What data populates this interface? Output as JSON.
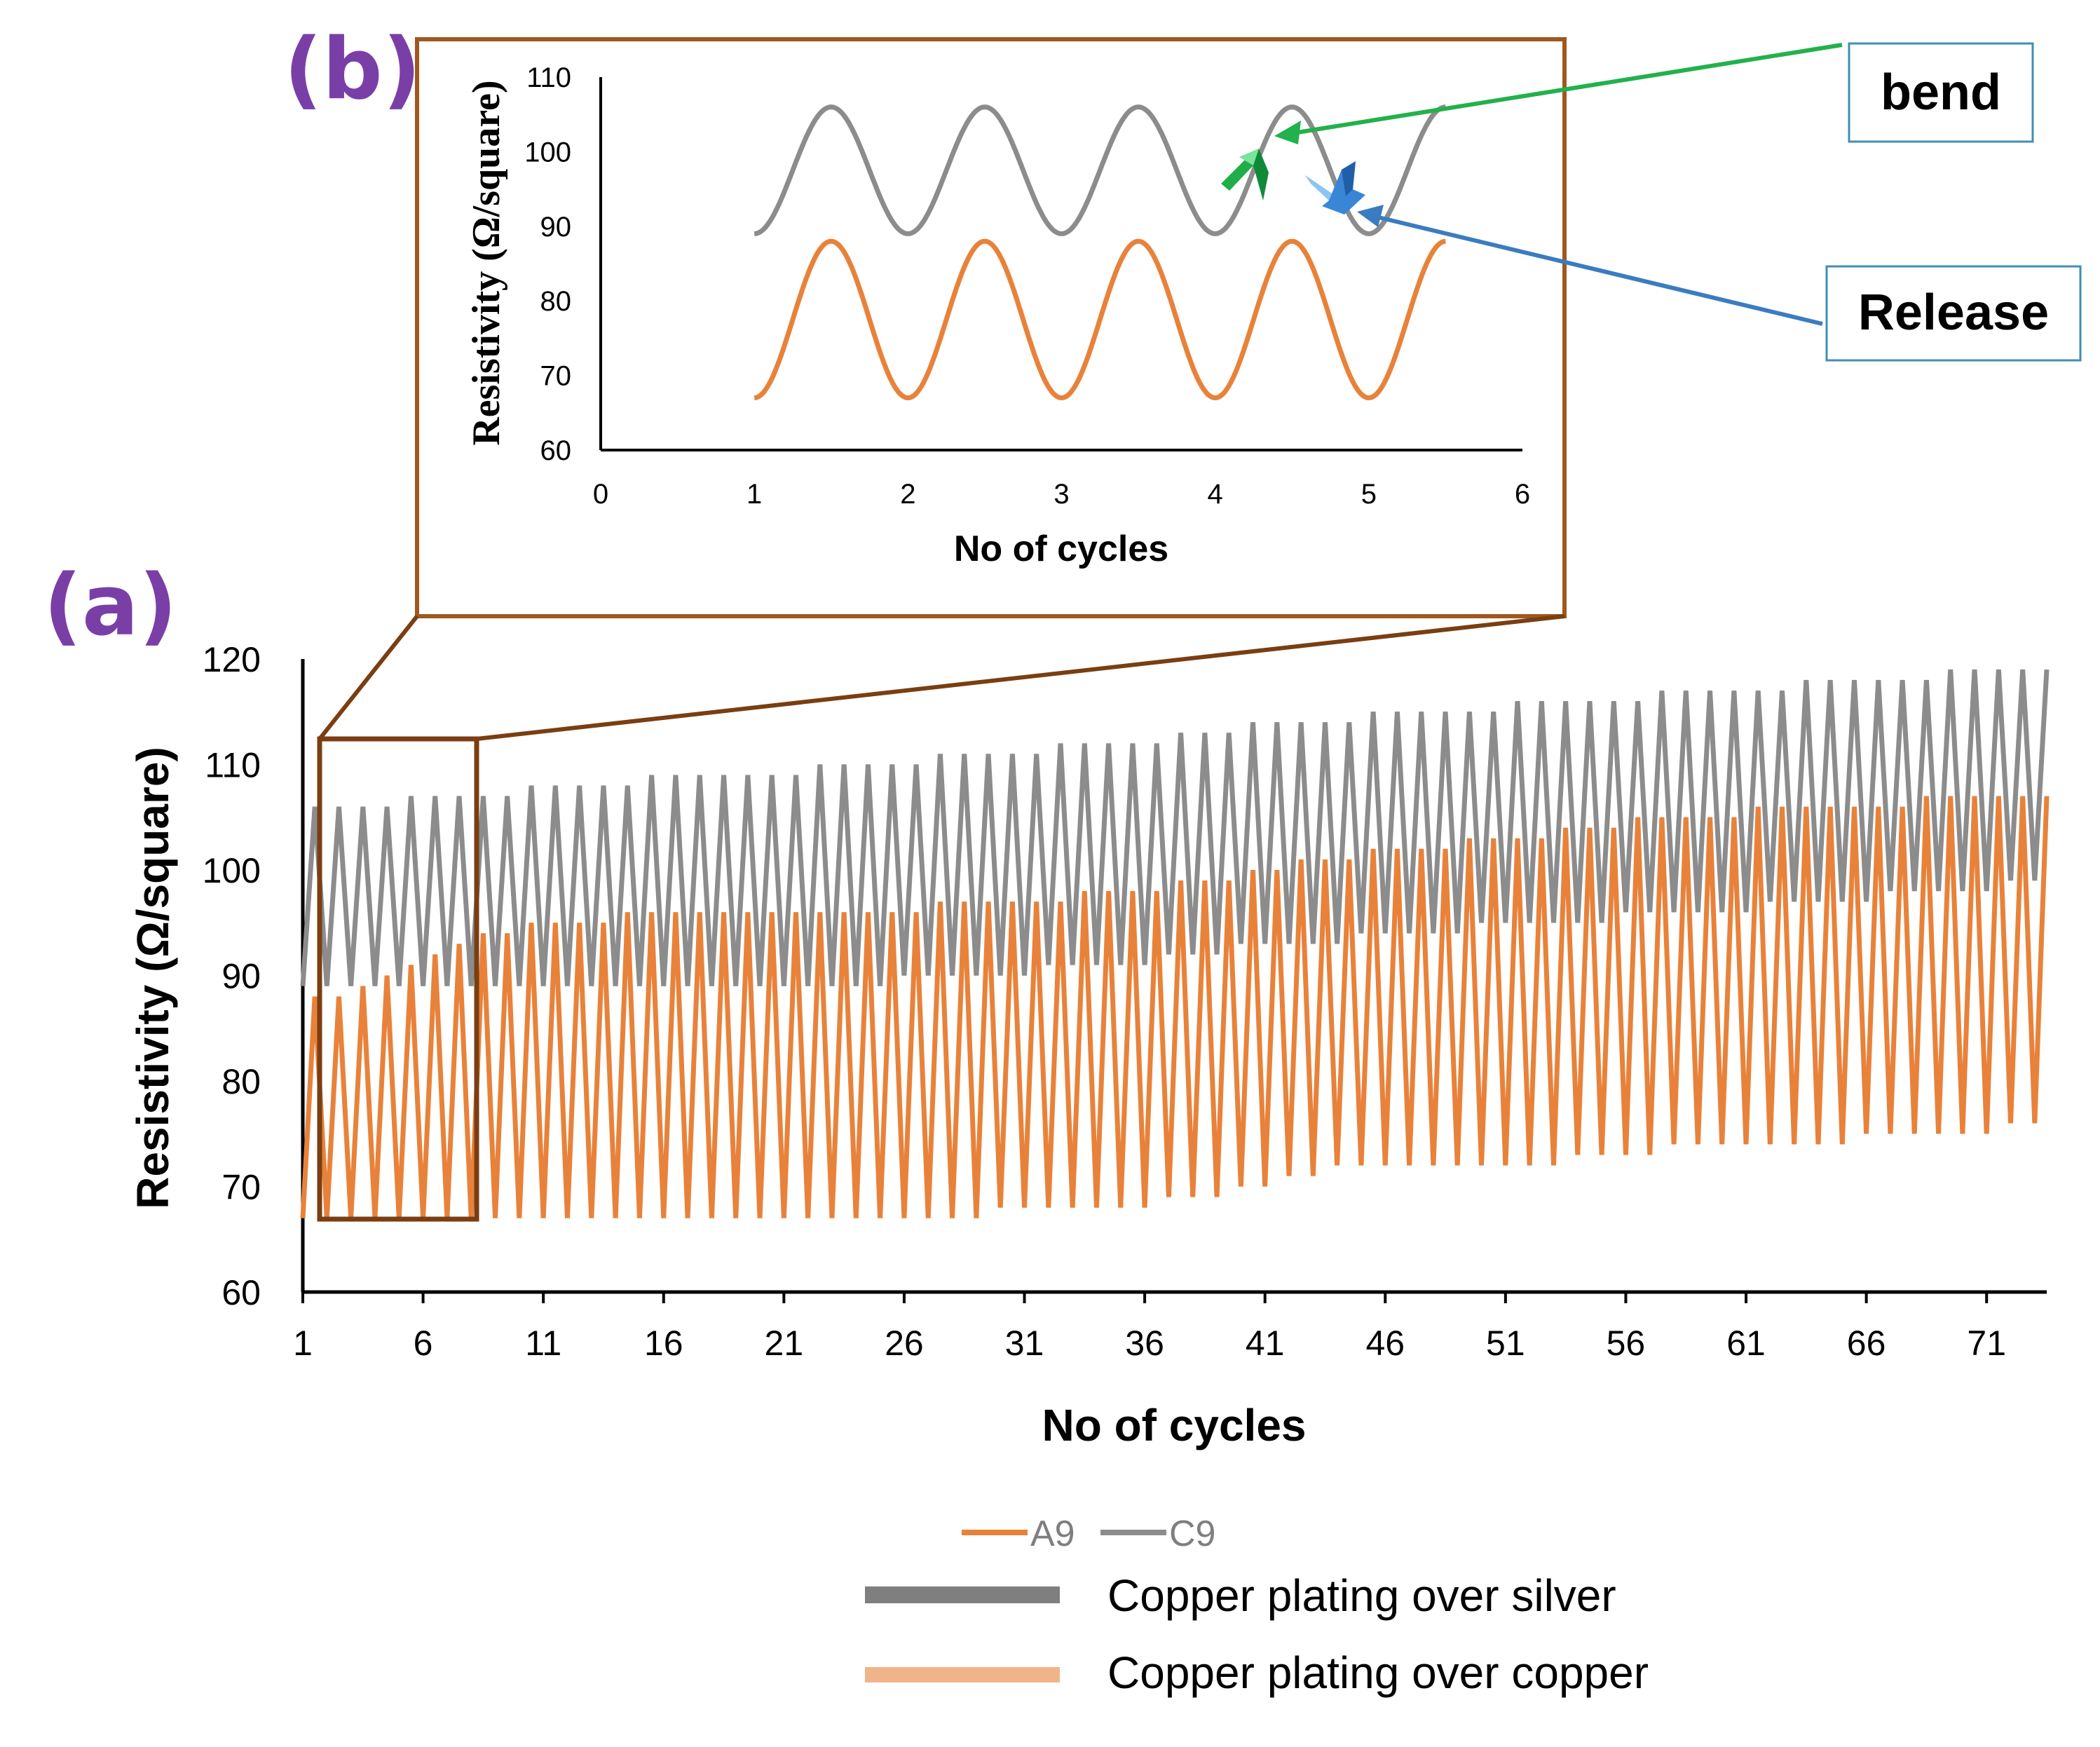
{
  "panel_labels": {
    "a": "(a)",
    "b": "(b)"
  },
  "annotations": {
    "bend": "bend",
    "release": "Release"
  },
  "legend": {
    "series_labels": [
      "A9",
      "C9"
    ],
    "descriptions": [
      {
        "text": "Copper plating over silver",
        "color": "#7f7f7f"
      },
      {
        "text": "Copper plating over copper",
        "color": "#f0b48a"
      }
    ]
  },
  "colors": {
    "A9": "#e8823a",
    "C9": "#8c8c8c",
    "zoom_box": "#7a3e12",
    "bend_arrow": "#22b14c",
    "release_arrow": "#3a7cc0",
    "panel_label": "#7a3fa6"
  },
  "chart_data": [
    {
      "id": "main",
      "type": "line",
      "title": "",
      "xlabel": "No of cycles",
      "ylabel": "Resistivity (Ω/square)",
      "ylim": [
        60,
        120
      ],
      "yticks": [
        60,
        70,
        80,
        90,
        100,
        110,
        120
      ],
      "xlim": [
        1,
        73.5
      ],
      "xticks": [
        1,
        6,
        11,
        16,
        21,
        26,
        31,
        36,
        41,
        46,
        51,
        56,
        61,
        66,
        71
      ],
      "cycle_step": 0.5,
      "series": [
        {
          "name": "A9",
          "color": "#e8823a",
          "x_start": 1,
          "peaks": [
            88,
            88,
            89,
            90,
            91,
            92,
            93,
            94,
            94,
            95,
            95,
            95,
            95,
            96,
            96,
            96,
            96,
            96,
            96,
            96,
            96,
            96,
            96,
            96,
            96,
            96,
            97,
            97,
            97,
            97,
            97,
            97,
            98,
            98,
            98,
            98,
            99,
            99,
            99,
            100,
            100,
            101,
            101,
            101,
            102,
            102,
            102,
            102,
            103,
            103,
            103,
            103,
            104,
            104,
            104,
            105,
            105,
            105,
            105,
            105,
            106,
            106,
            106,
            106,
            106,
            106,
            106,
            107,
            107,
            107,
            107,
            107,
            107
          ],
          "troughs": [
            67,
            67,
            67,
            67,
            67,
            67,
            67,
            67,
            67,
            67,
            67,
            67,
            67,
            67,
            67,
            67,
            67,
            67,
            67,
            67,
            67,
            67,
            67,
            67,
            67,
            67,
            67,
            67,
            67,
            68,
            68,
            68,
            68,
            68,
            68,
            68,
            69,
            69,
            69,
            70,
            70,
            71,
            71,
            72,
            72,
            72,
            72,
            72,
            72,
            72,
            72,
            72,
            72,
            73,
            73,
            73,
            73,
            74,
            74,
            74,
            74,
            74,
            74,
            74,
            74,
            75,
            75,
            75,
            75,
            75,
            75,
            76,
            76
          ]
        },
        {
          "name": "C9",
          "color": "#8c8c8c",
          "x_start": 1,
          "peaks": [
            106,
            106,
            106,
            106,
            107,
            107,
            107,
            107,
            107,
            108,
            108,
            108,
            108,
            108,
            109,
            109,
            109,
            109,
            109,
            109,
            109,
            110,
            110,
            110,
            110,
            110,
            111,
            111,
            111,
            111,
            111,
            112,
            112,
            112,
            112,
            112,
            113,
            113,
            113,
            114,
            114,
            114,
            114,
            114,
            115,
            115,
            115,
            115,
            115,
            115,
            116,
            116,
            116,
            116,
            116,
            116,
            117,
            117,
            117,
            117,
            117,
            117,
            118,
            118,
            118,
            118,
            118,
            118,
            119,
            119,
            119,
            119,
            119
          ],
          "troughs": [
            89,
            89,
            89,
            89,
            89,
            89,
            89,
            89,
            89,
            89,
            89,
            89,
            89,
            89,
            89,
            89,
            89,
            89,
            89,
            89,
            89,
            89,
            89,
            89,
            89,
            90,
            90,
            90,
            90,
            90,
            90,
            91,
            91,
            91,
            91,
            91,
            92,
            92,
            92,
            93,
            93,
            93,
            93,
            93,
            94,
            94,
            94,
            94,
            94,
            95,
            95,
            95,
            95,
            95,
            95,
            96,
            96,
            96,
            96,
            96,
            96,
            97,
            97,
            97,
            97,
            97,
            98,
            98,
            98,
            98,
            98,
            99,
            99
          ]
        }
      ]
    },
    {
      "id": "inset",
      "type": "line",
      "title": "",
      "xlabel": "No of cycles",
      "ylabel": "Resistivity  (Ω/square)",
      "xlim": [
        0,
        6
      ],
      "ylim": [
        60,
        110
      ],
      "xticks": [
        0,
        1,
        2,
        3,
        4,
        5,
        6
      ],
      "yticks": [
        60,
        70,
        80,
        90,
        100,
        110
      ],
      "series": [
        {
          "name": "C9",
          "color": "#8c8c8c",
          "x_start": 1,
          "x_end": 5.5,
          "min": 89,
          "max": 106
        },
        {
          "name": "A9",
          "color": "#e8823a",
          "x_start": 1,
          "x_end": 5.5,
          "min": 67,
          "max": 88
        }
      ]
    }
  ]
}
